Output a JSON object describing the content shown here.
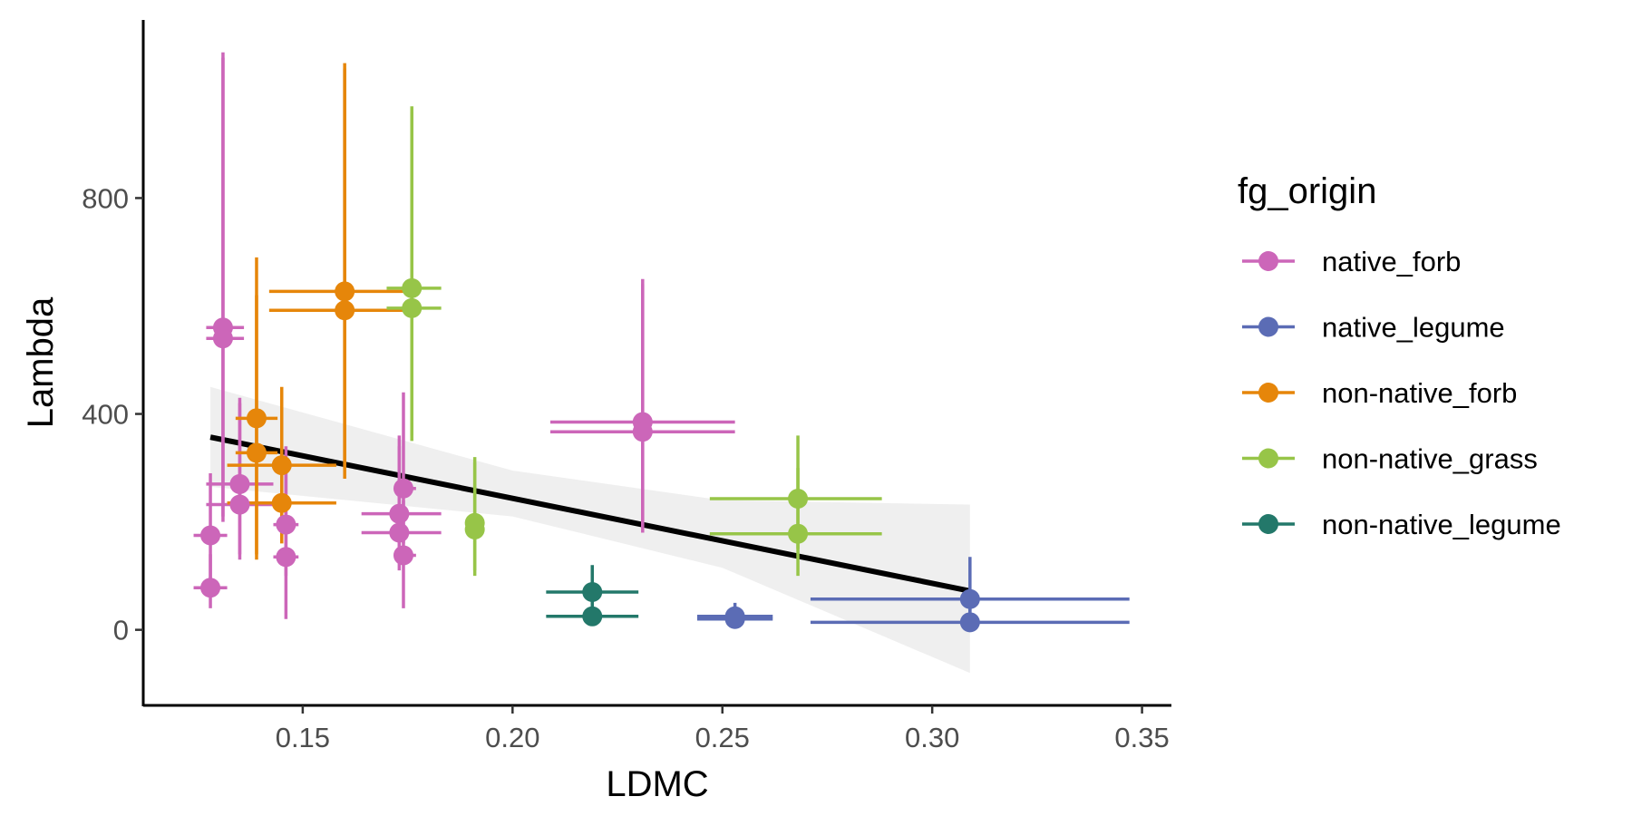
{
  "chart_data": {
    "type": "scatter",
    "title": "",
    "xlabel": "LDMC",
    "ylabel": "Lambda",
    "xlim": [
      0.112,
      0.357
    ],
    "ylim": [
      -140,
      1130
    ],
    "x_ticks": [
      0.15,
      0.2,
      0.25,
      0.3,
      0.35
    ],
    "x_tick_labels": [
      "0.15",
      "0.20",
      "0.25",
      "0.30",
      "0.35"
    ],
    "y_ticks": [
      0,
      400,
      800
    ],
    "y_tick_labels": [
      "0",
      "400",
      "800"
    ],
    "grid": false,
    "legend": {
      "title": "fg_origin",
      "position": "right",
      "entries": [
        {
          "label": "native_forb",
          "color": "#CC66B9"
        },
        {
          "label": "native_legume",
          "color": "#5B6CB5"
        },
        {
          "label": "non-native_forb",
          "color": "#E6860A"
        },
        {
          "label": "non-native_grass",
          "color": "#97C548"
        },
        {
          "label": "non-native_legume",
          "color": "#23786A"
        }
      ]
    },
    "series": [
      {
        "name": "native_forb",
        "color": "#CC66B9",
        "points": [
          {
            "x": 0.131,
            "y": 560,
            "xmin": 0.127,
            "xmax": 0.136,
            "ymin": 200,
            "ymax": 1070
          },
          {
            "x": 0.131,
            "y": 540,
            "xmin": 0.127,
            "xmax": 0.136,
            "ymin": 210,
            "ymax": 1060
          },
          {
            "x": 0.135,
            "y": 270,
            "xmin": 0.127,
            "xmax": 0.143,
            "ymin": 130,
            "ymax": 430
          },
          {
            "x": 0.135,
            "y": 232,
            "xmin": 0.127,
            "xmax": 0.143,
            "ymin": 140,
            "ymax": 420
          },
          {
            "x": 0.128,
            "y": 175,
            "xmin": 0.124,
            "xmax": 0.132,
            "ymin": 60,
            "ymax": 290
          },
          {
            "x": 0.128,
            "y": 78,
            "xmin": 0.124,
            "xmax": 0.132,
            "ymin": 40,
            "ymax": 140
          },
          {
            "x": 0.146,
            "y": 195,
            "xmin": 0.143,
            "xmax": 0.149,
            "ymin": 100,
            "ymax": 340
          },
          {
            "x": 0.146,
            "y": 135,
            "xmin": 0.143,
            "xmax": 0.149,
            "ymin": 20,
            "ymax": 300
          },
          {
            "x": 0.174,
            "y": 262,
            "xmin": 0.172,
            "xmax": 0.177,
            "ymin": 160,
            "ymax": 440
          },
          {
            "x": 0.173,
            "y": 215,
            "xmin": 0.164,
            "xmax": 0.183,
            "ymin": 130,
            "ymax": 360
          },
          {
            "x": 0.173,
            "y": 180,
            "xmin": 0.164,
            "xmax": 0.183,
            "ymin": 110,
            "ymax": 340
          },
          {
            "x": 0.174,
            "y": 138,
            "xmin": 0.172,
            "xmax": 0.177,
            "ymin": 40,
            "ymax": 240
          },
          {
            "x": 0.231,
            "y": 385,
            "xmin": 0.209,
            "xmax": 0.253,
            "ymin": 190,
            "ymax": 650
          },
          {
            "x": 0.231,
            "y": 367,
            "xmin": 0.209,
            "xmax": 0.253,
            "ymin": 180,
            "ymax": 640
          }
        ]
      },
      {
        "name": "native_legume",
        "color": "#5B6CB5",
        "points": [
          {
            "x": 0.253,
            "y": 25,
            "xmin": 0.244,
            "xmax": 0.262,
            "ymin": 10,
            "ymax": 50
          },
          {
            "x": 0.253,
            "y": 20,
            "xmin": 0.244,
            "xmax": 0.262,
            "ymin": 8,
            "ymax": 40
          },
          {
            "x": 0.309,
            "y": 57,
            "xmin": 0.271,
            "xmax": 0.347,
            "ymin": 10,
            "ymax": 135
          },
          {
            "x": 0.309,
            "y": 14,
            "xmin": 0.271,
            "xmax": 0.347,
            "ymin": 5,
            "ymax": 40
          }
        ]
      },
      {
        "name": "non-native_forb",
        "color": "#E6860A",
        "points": [
          {
            "x": 0.139,
            "y": 392,
            "xmin": 0.134,
            "xmax": 0.144,
            "ymin": 130,
            "ymax": 690
          },
          {
            "x": 0.139,
            "y": 328,
            "xmin": 0.134,
            "xmax": 0.144,
            "ymin": 140,
            "ymax": 620
          },
          {
            "x": 0.145,
            "y": 305,
            "xmin": 0.132,
            "xmax": 0.158,
            "ymin": 170,
            "ymax": 450
          },
          {
            "x": 0.145,
            "y": 235,
            "xmin": 0.132,
            "xmax": 0.158,
            "ymin": 160,
            "ymax": 440
          },
          {
            "x": 0.16,
            "y": 627,
            "xmin": 0.142,
            "xmax": 0.177,
            "ymin": 300,
            "ymax": 1050
          },
          {
            "x": 0.16,
            "y": 592,
            "xmin": 0.142,
            "xmax": 0.177,
            "ymin": 280,
            "ymax": 1040
          }
        ]
      },
      {
        "name": "non-native_grass",
        "color": "#97C548",
        "points": [
          {
            "x": 0.176,
            "y": 633,
            "xmin": 0.17,
            "xmax": 0.183,
            "ymin": 360,
            "ymax": 970
          },
          {
            "x": 0.176,
            "y": 596,
            "xmin": 0.17,
            "xmax": 0.183,
            "ymin": 350,
            "ymax": 960
          },
          {
            "x": 0.191,
            "y": 198,
            "xmin": 0.189,
            "xmax": 0.193,
            "ymin": 110,
            "ymax": 320
          },
          {
            "x": 0.191,
            "y": 186,
            "xmin": 0.189,
            "xmax": 0.193,
            "ymin": 100,
            "ymax": 310
          },
          {
            "x": 0.268,
            "y": 243,
            "xmin": 0.247,
            "xmax": 0.288,
            "ymin": 150,
            "ymax": 360
          },
          {
            "x": 0.268,
            "y": 178,
            "xmin": 0.247,
            "xmax": 0.288,
            "ymin": 100,
            "ymax": 300
          }
        ]
      },
      {
        "name": "non-native_legume",
        "color": "#23786A",
        "points": [
          {
            "x": 0.219,
            "y": 70,
            "xmin": 0.208,
            "xmax": 0.23,
            "ymin": 40,
            "ymax": 120
          },
          {
            "x": 0.219,
            "y": 25,
            "xmin": 0.208,
            "xmax": 0.23,
            "ymin": 10,
            "ymax": 60
          }
        ]
      }
    ],
    "trend_line": {
      "x": [
        0.128,
        0.309
      ],
      "y": [
        357,
        72
      ],
      "color": "#000000",
      "ribbon_color": "#EBEBEB",
      "ribbon": {
        "x": [
          0.128,
          0.2,
          0.25,
          0.309
        ],
        "ymin": [
          265,
          210,
          115,
          -80
        ],
        "ymax": [
          450,
          295,
          240,
          232
        ]
      }
    }
  }
}
